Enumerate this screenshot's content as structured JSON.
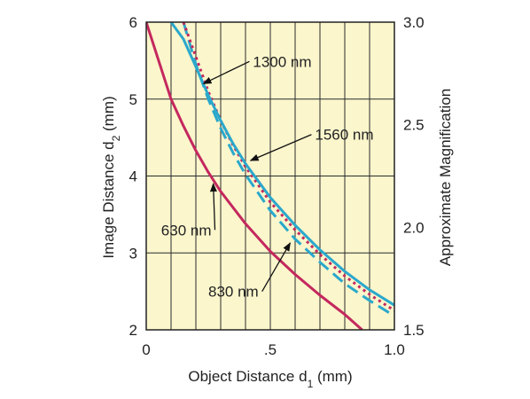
{
  "chart_data": {
    "type": "line",
    "title": "",
    "xlabel": "Object Distance d",
    "xlabel_sub": "1",
    "xlabel_unit": " (mm)",
    "ylabel": "Image Distance d",
    "ylabel_sub": "2",
    "ylabel_unit": " (mm)",
    "y2label": "Approximate Magnification",
    "xlim": [
      0,
      1.0
    ],
    "ylim": [
      2,
      6
    ],
    "y2lim": [
      1.5,
      3.0
    ],
    "x_ticks": [
      {
        "v": 0,
        "label": "0"
      },
      {
        "v": 0.5,
        "label": ".5"
      },
      {
        "v": 1.0,
        "label": "1.0"
      }
    ],
    "y_ticks": [
      {
        "v": 2,
        "label": "2"
      },
      {
        "v": 3,
        "label": "3"
      },
      {
        "v": 4,
        "label": "4"
      },
      {
        "v": 5,
        "label": "5"
      },
      {
        "v": 6,
        "label": "6"
      }
    ],
    "y2_ticks": [
      {
        "v": 1.5,
        "label": "1.5"
      },
      {
        "v": 2.0,
        "label": "2.0"
      },
      {
        "v": 2.5,
        "label": "2.5"
      },
      {
        "v": 3.0,
        "label": "3.0"
      }
    ],
    "grid": true,
    "background": "#fbf6cc",
    "series": [
      {
        "name": "630 nm",
        "color": "#c4285e",
        "style": "solid",
        "x": [
          0.0,
          0.05,
          0.1,
          0.15,
          0.2,
          0.25,
          0.3,
          0.4,
          0.5,
          0.6,
          0.7,
          0.8,
          0.87
        ],
        "y": [
          6.0,
          5.5,
          5.0,
          4.65,
          4.33,
          4.05,
          3.8,
          3.38,
          3.02,
          2.72,
          2.45,
          2.2,
          2.0
        ]
      },
      {
        "name": "830 nm",
        "color": "#2aa8cc",
        "style": "dashed",
        "x": [
          0.15,
          0.2,
          0.25,
          0.3,
          0.35,
          0.4,
          0.5,
          0.6,
          0.7,
          0.8,
          0.9,
          1.0
        ],
        "y": [
          6.0,
          5.45,
          5.0,
          4.62,
          4.3,
          4.02,
          3.55,
          3.18,
          2.88,
          2.6,
          2.38,
          2.18
        ]
      },
      {
        "name": "1300 nm",
        "color": "#c4285e",
        "style": "dotted",
        "x": [
          0.15,
          0.2,
          0.25,
          0.3,
          0.35,
          0.4,
          0.5,
          0.6,
          0.7,
          0.8,
          0.9,
          1.0
        ],
        "y": [
          6.0,
          5.55,
          5.1,
          4.72,
          4.4,
          4.12,
          3.66,
          3.3,
          2.98,
          2.7,
          2.46,
          2.25
        ]
      },
      {
        "name": "1560 nm",
        "color": "#2aa8cc",
        "style": "solid",
        "x": [
          0.1,
          0.15,
          0.2,
          0.25,
          0.3,
          0.35,
          0.4,
          0.5,
          0.6,
          0.7,
          0.8,
          0.9,
          1.0
        ],
        "y": [
          6.0,
          5.78,
          5.42,
          5.05,
          4.72,
          4.42,
          4.16,
          3.72,
          3.36,
          3.04,
          2.76,
          2.52,
          2.32
        ]
      }
    ],
    "annotations": [
      {
        "text": "1300 nm",
        "text_x": 0.43,
        "text_y": 5.42,
        "arrow_x": 0.23,
        "arrow_y": 5.2
      },
      {
        "text": "1560 nm",
        "text_x": 0.68,
        "text_y": 4.47,
        "arrow_x": 0.42,
        "arrow_y": 4.2
      },
      {
        "text": "630 nm",
        "text_x": 0.06,
        "text_y": 3.23,
        "arrow_x": 0.27,
        "arrow_y": 3.9
      },
      {
        "text": "830 nm",
        "text_x": 0.25,
        "text_y": 2.43,
        "arrow_x": 0.58,
        "arrow_y": 3.13
      }
    ]
  }
}
